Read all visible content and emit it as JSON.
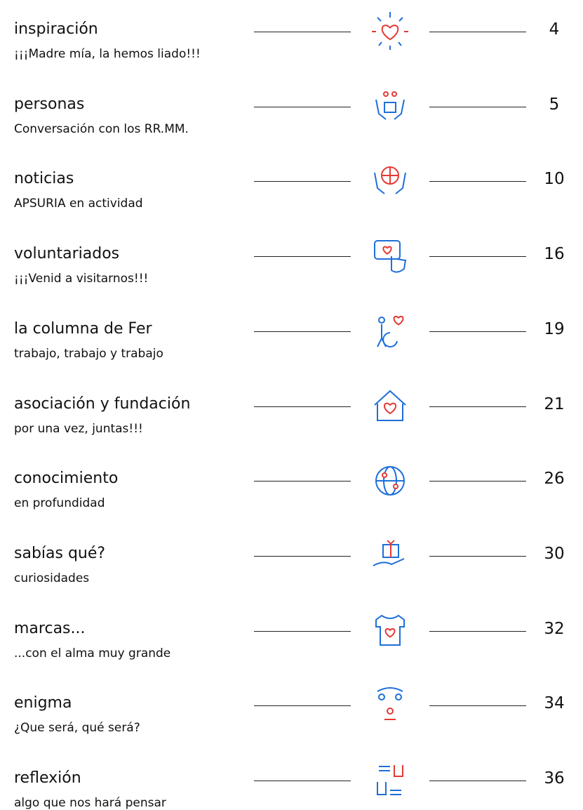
{
  "entries": [
    {
      "title": "inspiración",
      "subtitle": "¡¡¡Madre mía, la hemos liado!!!",
      "page": 4
    },
    {
      "title": "personas",
      "subtitle": "Conversación con los RR.MM.",
      "page": 5
    },
    {
      "title": "noticias",
      "subtitle": "APSURIA en actividad",
      "page": 10
    },
    {
      "title": "voluntariados",
      "subtitle": "¡¡¡Venid a visitarnos!!!",
      "page": 16
    },
    {
      "title": "la columna de Fer",
      "subtitle": "trabajo, trabajo y trabajo",
      "page": 19
    },
    {
      "title": "asociación y fundación",
      "subtitle": "por una vez, juntas!!!",
      "page": 21
    },
    {
      "title": "conocimiento",
      "subtitle": "en profundidad",
      "page": 26
    },
    {
      "title": "sabías qué?",
      "subtitle": "curiosidades",
      "page": 30
    },
    {
      "title": "marcas...",
      "subtitle": "...con el alma muy grande",
      "page": 32
    },
    {
      "title": "enigma",
      "subtitle": "¿Que será, qué será?",
      "page": 34
    },
    {
      "title": "reflexión",
      "subtitle": "algo que nos hará pensar",
      "page": 36
    }
  ]
}
